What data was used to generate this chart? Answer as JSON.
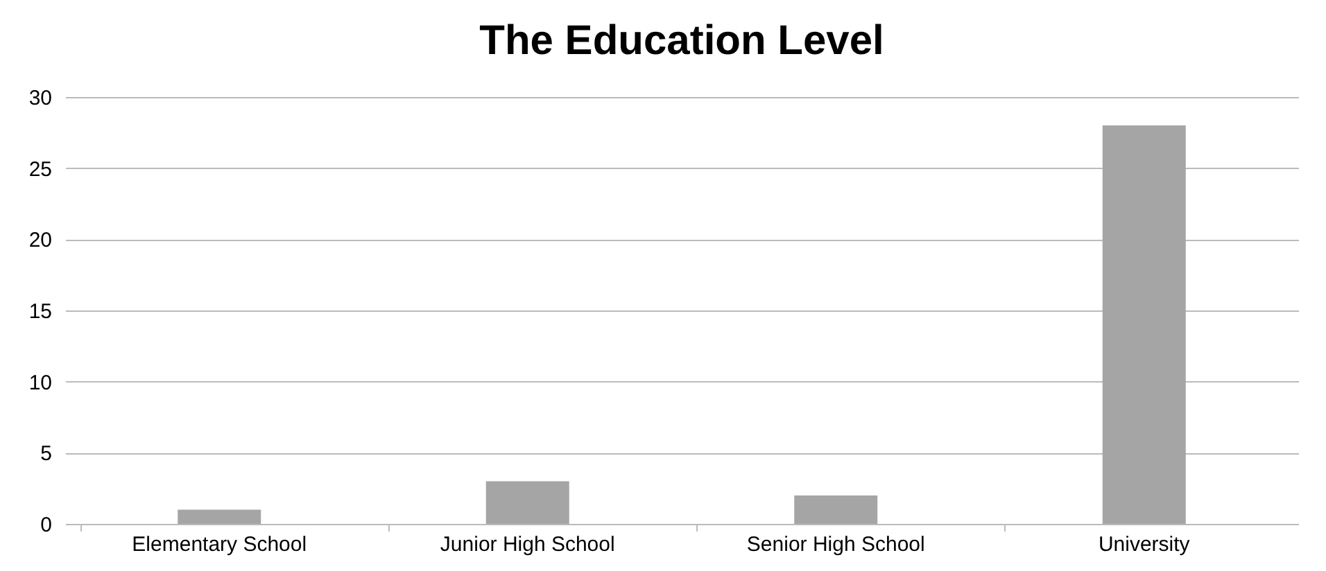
{
  "chart_data": {
    "type": "bar",
    "title": "The Education Level",
    "categories": [
      "Elementary School",
      "Junior High School",
      "Senior High School",
      "University"
    ],
    "values": [
      1,
      3,
      2,
      28
    ],
    "color": "#a5a5a5",
    "ylim": [
      0,
      30
    ],
    "yticks": [
      0,
      5,
      10,
      15,
      20,
      25,
      30
    ],
    "grid": "y"
  }
}
